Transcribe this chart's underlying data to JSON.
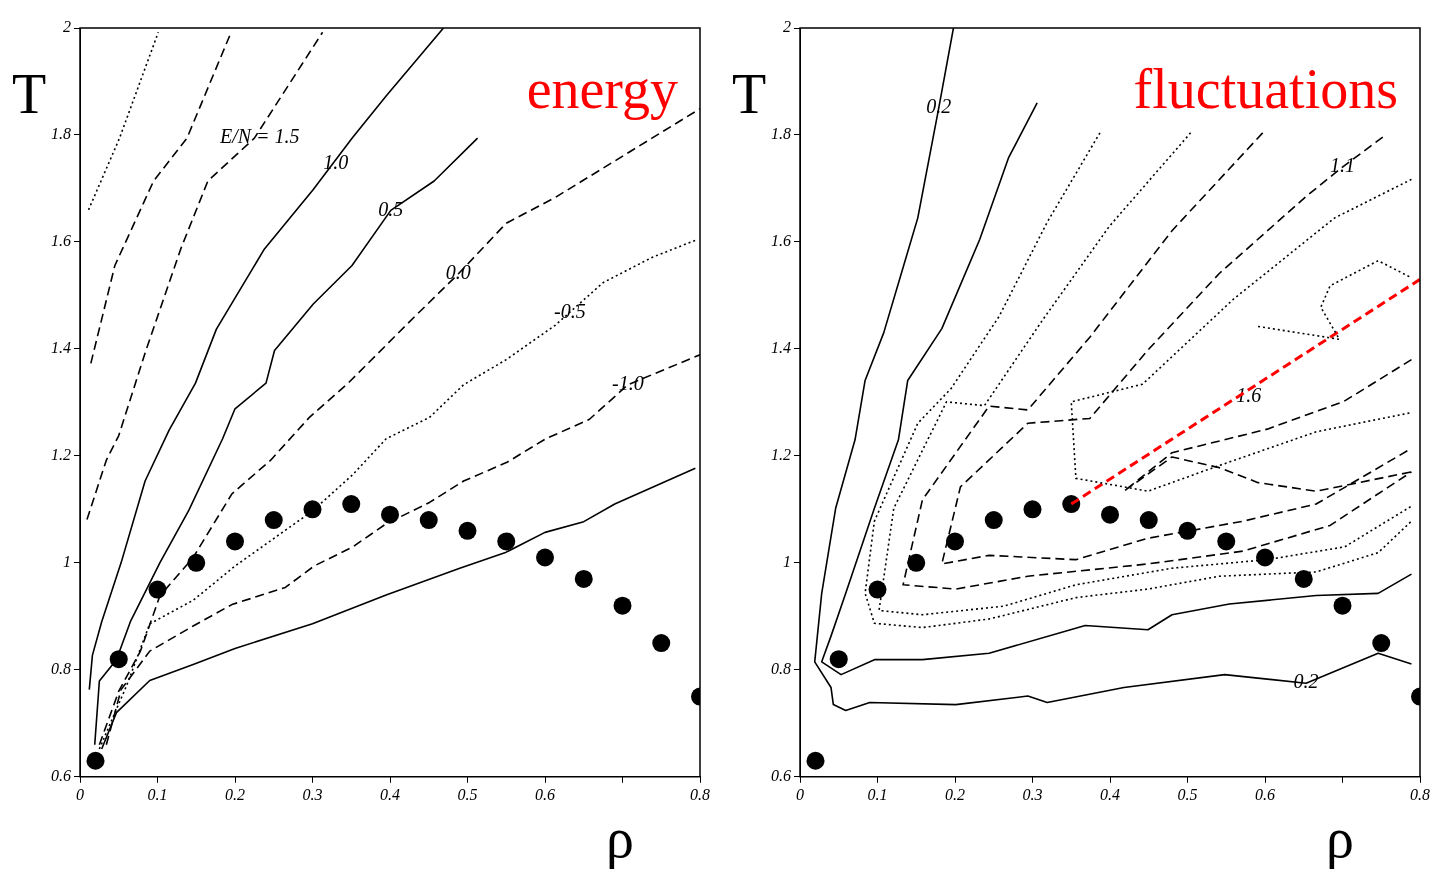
{
  "chart_data": [
    {
      "type": "line",
      "title": "energy",
      "xlabel": "ρ",
      "ylabel": "T",
      "xlim": [
        0,
        0.8
      ],
      "ylim": [
        0.6,
        2
      ],
      "xticks": [
        0,
        0.1,
        0.2,
        0.3,
        0.4,
        0.5,
        0.6,
        {
          "value": 0.7,
          "label": null
        },
        0.8
      ],
      "yticks": [
        0.6,
        0.8,
        1,
        1.2,
        1.4,
        1.6,
        1.8,
        2
      ],
      "series": [
        {
          "type": "line",
          "color": "#000000",
          "line_style": "solid",
          "x": [
            0.028,
            0.047,
            0.09,
            0.146,
            0.2,
            0.3,
            0.395,
            0.49,
            0.55,
            0.6,
            0.65,
            0.69,
            0.794
          ],
          "values": [
            0.652,
            0.72,
            0.78,
            0.81,
            0.84,
            0.886,
            0.94,
            0.99,
            1.02,
            1.057,
            1.077,
            1.11,
            1.177
          ]
        },
        {
          "type": "line",
          "color": "#000000",
          "line_style": "dashed",
          "x": [
            0.034,
            0.053,
            0.09,
            0.146,
            0.196,
            0.265,
            0.302,
            0.352,
            0.395,
            0.451,
            0.495,
            0.551,
            0.601,
            0.657,
            0.707,
            0.8
          ],
          "values": [
            0.66,
            0.763,
            0.835,
            0.882,
            0.922,
            0.954,
            0.994,
            1.03,
            1.073,
            1.113,
            1.153,
            1.188,
            1.232,
            1.268,
            1.333,
            1.389
          ]
        },
        {
          "type": "line",
          "color": "#000000",
          "line_style": "dotted",
          "x": [
            0.025,
            0.06,
            0.09,
            0.146,
            0.2,
            0.3,
            0.352,
            0.395,
            0.451,
            0.495,
            0.55,
            0.613,
            0.675,
            0.738,
            0.794
          ],
          "values": [
            0.652,
            0.77,
            0.886,
            0.93,
            0.994,
            1.097,
            1.165,
            1.232,
            1.272,
            1.333,
            1.38,
            1.444,
            1.524,
            1.571,
            1.603
          ]
        },
        {
          "type": "line",
          "color": "#000000",
          "line_style": "dashed",
          "x": [
            0.025,
            0.05,
            0.078,
            0.103,
            0.146,
            0.196,
            0.246,
            0.296,
            0.346,
            0.426,
            0.488,
            0.55,
            0.613,
            0.675,
            0.738,
            0.8
          ],
          "values": [
            0.66,
            0.76,
            0.835,
            0.938,
            1.01,
            1.129,
            1.192,
            1.272,
            1.336,
            1.452,
            1.54,
            1.635,
            1.683,
            1.738,
            1.794,
            1.849
          ]
        },
        {
          "type": "line",
          "color": "#000000",
          "line_style": "solid",
          "x": [
            0.019,
            0.025,
            0.047,
            0.065,
            0.103,
            0.14,
            0.184,
            0.2,
            0.24,
            0.251,
            0.301,
            0.351,
            0.401,
            0.457,
            0.513
          ],
          "values": [
            0.66,
            0.779,
            0.819,
            0.89,
            1,
            1.097,
            1.232,
            1.288,
            1.336,
            1.397,
            1.484,
            1.556,
            1.659,
            1.714,
            1.794
          ]
        },
        {
          "type": "line",
          "color": "#000000",
          "line_style": "solid",
          "x": [
            0.012,
            0.016,
            0.028,
            0.053,
            0.084,
            0.115,
            0.149,
            0.176,
            0.238,
            0.301,
            0.351,
            0.395,
            0.469
          ],
          "values": [
            0.763,
            0.827,
            0.89,
            1,
            1.153,
            1.248,
            1.336,
            1.437,
            1.587,
            1.698,
            1.794,
            1.873,
            2
          ]
        },
        {
          "type": "line",
          "color": "#000000",
          "line_style": "dashed",
          "x": [
            0.009,
            0.034,
            0.05,
            0.085,
            0.13,
            0.165,
            0.225,
            0.313
          ],
          "values": [
            1.081,
            1.192,
            1.238,
            1.397,
            1.587,
            1.714,
            1.794,
            1.992
          ]
        },
        {
          "type": "line",
          "color": "#000000",
          "line_style": "dashed",
          "x": [
            0.014,
            0.045,
            0.095,
            0.138,
            0.195
          ],
          "values": [
            1.373,
            1.556,
            1.714,
            1.794,
            1.992
          ]
        },
        {
          "type": "line",
          "color": "#000000",
          "line_style": "dotted",
          "x": [
            0.011,
            0.051,
            0.101
          ],
          "values": [
            1.66,
            1.794,
            1.992
          ]
        },
        {
          "type": "scatter",
          "color": "#000000",
          "marker": "circle",
          "x": [
            0.02,
            0.05,
            0.1,
            0.15,
            0.2,
            0.25,
            0.3,
            0.35,
            0.4,
            0.45,
            0.5,
            0.55,
            0.6,
            0.65,
            0.7,
            0.75,
            0.8
          ],
          "values": [
            0.63,
            0.82,
            0.95,
            1,
            1.04,
            1.08,
            1.1,
            1.11,
            1.09,
            1.08,
            1.06,
            1.04,
            1.01,
            0.97,
            0.92,
            0.85,
            0.75
          ]
        }
      ],
      "annotations": [
        {
          "text": "E/N = 1.5",
          "x": 0.232,
          "y": 1.794
        },
        {
          "text": "1.0",
          "x": 0.33,
          "y": 1.746
        },
        {
          "text": "0.5",
          "x": 0.401,
          "y": 1.659
        },
        {
          "text": "0.0",
          "x": 0.488,
          "y": 1.54
        },
        {
          "text": "-0.5",
          "x": 0.632,
          "y": 1.468
        },
        {
          "text": "-1.0",
          "x": 0.707,
          "y": 1.333
        }
      ]
    },
    {
      "type": "line",
      "title": "fluctuations",
      "xlabel": "ρ",
      "ylabel": "T",
      "xlim": [
        0,
        0.8
      ],
      "ylim": [
        0.6,
        2
      ],
      "xticks": [
        0,
        0.1,
        0.2,
        0.3,
        0.4,
        0.5,
        0.6,
        {
          "value": 0.7,
          "label": null
        },
        0.8
      ],
      "yticks": [
        0.6,
        0.8,
        1,
        1.2,
        1.4,
        1.6,
        1.8,
        2
      ],
      "series": [
        {
          "type": "line",
          "color": "#000000",
          "line_style": "solid",
          "x": [
            0.198,
            0.179,
            0.152,
            0.108,
            0.084,
            0.071,
            0.046,
            0.028,
            0.019,
            0.04,
            0.043,
            0.059,
            0.09,
            0.201,
            0.294,
            0.319,
            0.418,
            0.548,
            0.653,
            0.746,
            0.789
          ],
          "values": [
            2,
            1.85,
            1.645,
            1.43,
            1.341,
            1.23,
            1.102,
            0.943,
            0.815,
            0.767,
            0.735,
            0.724,
            0.739,
            0.735,
            0.751,
            0.739,
            0.767,
            0.791,
            0.775,
            0.831,
            0.811
          ]
        },
        {
          "type": "line",
          "color": "#000000",
          "line_style": "solid",
          "x": [
            0.306,
            0.269,
            0.232,
            0.183,
            0.139,
            0.127,
            0.096,
            0.059,
            0.04,
            0.028,
            0.053,
            0.096,
            0.158,
            0.244,
            0.368,
            0.449,
            0.48,
            0.554,
            0.666,
            0.746,
            0.789
          ],
          "values": [
            1.86,
            1.757,
            1.605,
            1.438,
            1.341,
            1.23,
            1.102,
            0.943,
            0.863,
            0.815,
            0.791,
            0.819,
            0.819,
            0.831,
            0.883,
            0.875,
            0.903,
            0.923,
            0.939,
            0.943,
            0.979
          ]
        },
        {
          "type": "line",
          "color": "#000000",
          "line_style": "dotted",
          "x": [
            0.387,
            0.319,
            0.257,
            0.195,
            0.152,
            0.096,
            0.084,
            0.096,
            0.158,
            0.244,
            0.356,
            0.449,
            0.541,
            0.666,
            0.746,
            0.789
          ],
          "values": [
            1.804,
            1.637,
            1.461,
            1.326,
            1.261,
            1.078,
            0.943,
            0.887,
            0.879,
            0.895,
            0.935,
            0.951,
            0.975,
            0.983,
            1.019,
            1.078
          ]
        },
        {
          "type": "line",
          "color": "#000000",
          "line_style": "dotted",
          "x": [
            0.504,
            0.399,
            0.313,
            0.238,
            0.189,
            0.121,
            0.102,
            0.158,
            0.263,
            0.356,
            0.48,
            0.603,
            0.703,
            0.789
          ],
          "values": [
            1.804,
            1.629,
            1.454,
            1.294,
            1.301,
            1.102,
            0.911,
            0.903,
            0.919,
            0.959,
            0.99,
            1.006,
            1.03,
            1.106
          ]
        },
        {
          "type": "line",
          "color": "#000000",
          "line_style": "dashed",
          "x": [
            0.597,
            0.48,
            0.374,
            0.294,
            0.244,
            0.158,
            0.133,
            0.201,
            0.294,
            0.449,
            0.572,
            0.684,
            0.789
          ],
          "values": [
            1.804,
            1.621,
            1.422,
            1.286,
            1.293,
            1.118,
            0.959,
            0.951,
            0.975,
            0.998,
            1.022,
            1.07,
            1.17
          ]
        },
        {
          "type": "line",
          "color": "#000000",
          "line_style": "dashed",
          "x": [
            0.752,
            0.7,
            0.653,
            0.541,
            0.449,
            0.374,
            0.294,
            0.207,
            0.183,
            0.244,
            0.356,
            0.449,
            0.572,
            0.666,
            0.789
          ],
          "values": [
            1.796,
            1.74,
            1.685,
            1.541,
            1.398,
            1.27,
            1.261,
            1.142,
            0.998,
            1.014,
            1.006,
            1.046,
            1.078,
            1.11,
            1.214
          ]
        },
        {
          "type": "line",
          "color": "#000000",
          "line_style": "dotted",
          "x": [
            0.789,
            0.69,
            0.56,
            0.442,
            0.35,
            0.356,
            0.449,
            0.541,
            0.666,
            0.789
          ],
          "values": [
            1.717,
            1.645,
            1.494,
            1.334,
            1.301,
            1.158,
            1.134,
            1.182,
            1.245,
            1.281
          ]
        },
        {
          "type": "line",
          "color": "#000000",
          "line_style": "dashed",
          "x": [
            0.789,
            0.702,
            0.603,
            0.48,
            0.418,
            0.48,
            0.541,
            0.591,
            0.666,
            0.789
          ],
          "values": [
            1.38,
            1.302,
            1.25,
            1.206,
            1.134,
            1.198,
            1.178,
            1.15,
            1.134,
            1.17
          ]
        },
        {
          "type": "line",
          "color": "#000000",
          "line_style": "dotted",
          "x": [
            0.591,
            0.696,
            0.672,
            0.684,
            0.746,
            0.789
          ],
          "values": [
            1.442,
            1.418,
            1.478,
            1.518,
            1.565,
            1.533
          ]
        },
        {
          "type": "line",
          "color": "#ff0000",
          "line_style": "dashed",
          "x": [
            0.35,
            0.8
          ],
          "values": [
            1.11,
            1.53
          ]
        },
        {
          "type": "scatter",
          "color": "#000000",
          "marker": "circle",
          "x": [
            0.02,
            0.05,
            0.1,
            0.15,
            0.2,
            0.25,
            0.3,
            0.35,
            0.4,
            0.45,
            0.5,
            0.55,
            0.6,
            0.65,
            0.7,
            0.75,
            0.8
          ],
          "values": [
            0.63,
            0.82,
            0.95,
            1,
            1.04,
            1.08,
            1.1,
            1.11,
            1.09,
            1.08,
            1.06,
            1.04,
            1.01,
            0.97,
            0.92,
            0.85,
            0.75
          ]
        }
      ],
      "annotations": [
        {
          "text": "0.2",
          "x": 0.179,
          "y": 1.85
        },
        {
          "text": "1.1",
          "x": 0.7,
          "y": 1.74
        },
        {
          "text": "1.6",
          "x": 0.579,
          "y": 1.311
        },
        {
          "text": "0.2",
          "x": 0.653,
          "y": 0.775
        }
      ]
    }
  ]
}
